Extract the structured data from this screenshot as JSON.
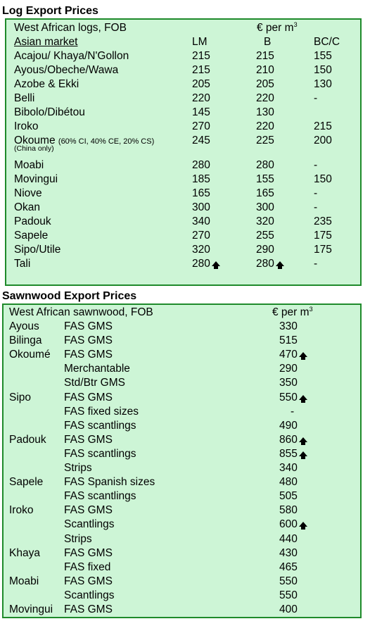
{
  "log": {
    "title": "Log Export Prices",
    "header_left": "West African logs, FOB",
    "header_unit": "€ per m",
    "header_unit_sup": "3",
    "market_label": "Asian market",
    "cols": [
      "LM",
      "B",
      "BC/C"
    ],
    "rows": [
      {
        "name": "Acajou/ Khaya/N'Gollon",
        "lm": "215",
        "b": "215",
        "bc": "155"
      },
      {
        "name": "Ayous/Obeche/Wawa",
        "lm": "215",
        "b": "210",
        "bc": "150"
      },
      {
        "name": "Azobe & Ekki",
        "lm": "205",
        "b": "205",
        "bc": "130"
      },
      {
        "name": "Belli",
        "lm": "220",
        "b": "220",
        "bc": "-"
      },
      {
        "name": "Bibolo/Dibétou",
        "lm": "145",
        "b": "130",
        "bc": ""
      },
      {
        "name": "Iroko",
        "lm": "270",
        "b": "220",
        "bc": "215"
      },
      {
        "name": "Okoume",
        "note": "(60% CI, 40% CE, 20% CS)",
        "subnote": "(China only)",
        "lm": "245",
        "b": "225",
        "bc": "200"
      },
      {
        "name": "Moabi",
        "lm": "280",
        "b": "280",
        "bc": "-"
      },
      {
        "name": "Movingui",
        "lm": "185",
        "b": "155",
        "bc": "150"
      },
      {
        "name": "Niove",
        "lm": "165",
        "b": "165",
        "bc": "-"
      },
      {
        "name": "Okan",
        "lm": "300",
        "b": "300",
        "bc": "-"
      },
      {
        "name": "Padouk",
        "lm": "340",
        "b": "320",
        "bc": "235"
      },
      {
        "name": "Sapele",
        "lm": "270",
        "b": "255",
        "bc": "175"
      },
      {
        "name": "Sipo/Utile",
        "lm": "320",
        "b": "290",
        "bc": "175"
      },
      {
        "name": "Tali",
        "lm": "280",
        "lm_up": true,
        "b": "280",
        "b_up": true,
        "bc": "-"
      }
    ]
  },
  "sawn": {
    "title": "Sawnwood Export Prices",
    "header_left": "West African sawnwood, FOB",
    "header_unit": "€ per m",
    "header_unit_sup": "3",
    "rows": [
      {
        "species": "Ayous",
        "grade": "FAS GMS",
        "price": "330"
      },
      {
        "species": "Bilinga",
        "grade": "FAS GMS",
        "price": "515"
      },
      {
        "species": "Okoumé",
        "grade": "FAS GMS",
        "price": "470",
        "up": true
      },
      {
        "species": "",
        "grade": "Merchantable",
        "price": "290"
      },
      {
        "species": "",
        "grade": "Std/Btr GMS",
        "price": "350"
      },
      {
        "species": "Sipo",
        "grade": "FAS GMS",
        "price": "550",
        "up": true
      },
      {
        "species": "",
        "grade": "FAS fixed sizes",
        "price": "-"
      },
      {
        "species": "",
        "grade": "FAS scantlings",
        "price": "490"
      },
      {
        "species": "Padouk",
        "grade": "FAS GMS",
        "price": "860",
        "up": true
      },
      {
        "species": "",
        "grade": "FAS scantlings",
        "price": "855",
        "up": true
      },
      {
        "species": "",
        "grade": "Strips",
        "price": "340"
      },
      {
        "species": "Sapele",
        "grade": "FAS Spanish sizes",
        "price": "480"
      },
      {
        "species": "",
        "grade": "FAS scantlings",
        "price": "505"
      },
      {
        "species": "Iroko",
        "grade": "FAS GMS",
        "price": "580"
      },
      {
        "species": "",
        "grade": "Scantlings",
        "price": "600",
        "up": true
      },
      {
        "species": "",
        "grade": "Strips",
        "price": "440"
      },
      {
        "species": "Khaya",
        "grade": "FAS GMS",
        "price": "430"
      },
      {
        "species": "",
        "grade": "FAS fixed",
        "price": "465"
      },
      {
        "species": "Moabi",
        "grade": "FAS GMS",
        "price": "550"
      },
      {
        "species": "",
        "grade": "Scantlings",
        "price": "550"
      },
      {
        "species": "Movingui",
        "grade": "FAS GMS",
        "price": "400"
      }
    ]
  }
}
